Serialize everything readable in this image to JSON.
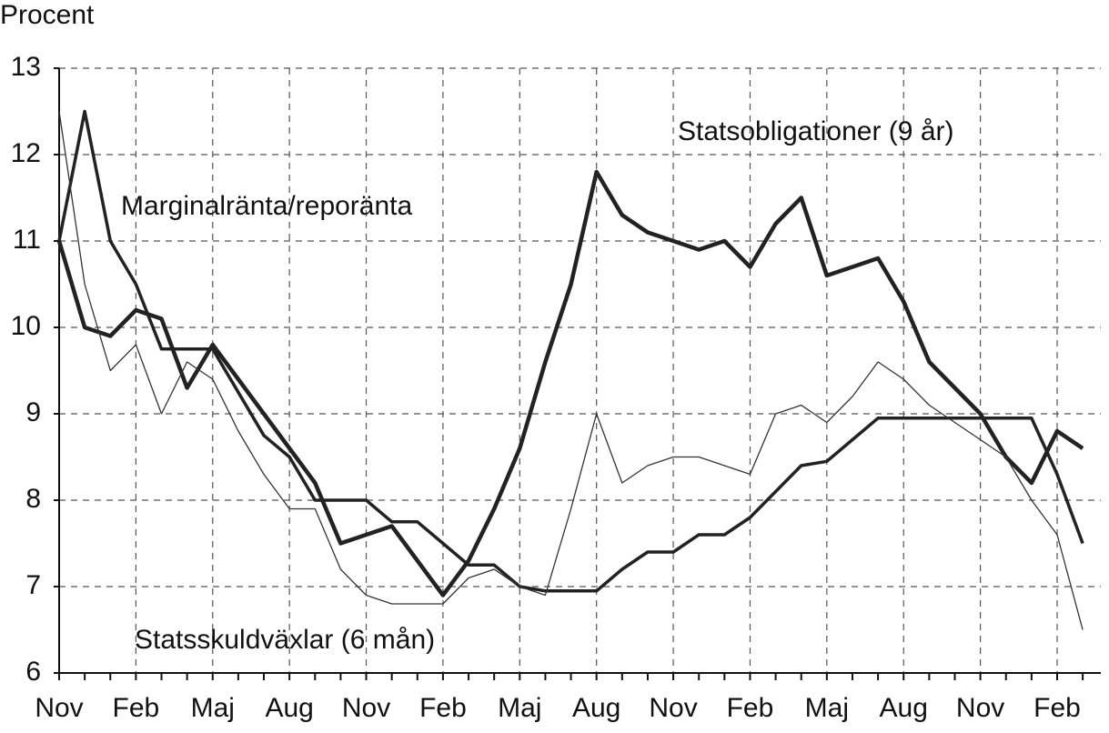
{
  "chart_data": {
    "type": "line",
    "ylabel": "Procent",
    "categories": [
      "Nov",
      null,
      null,
      "Feb",
      null,
      null,
      "Maj",
      null,
      null,
      "Aug",
      null,
      null,
      "Nov",
      null,
      null,
      "Feb",
      null,
      null,
      "Maj",
      null,
      null,
      "Aug",
      null,
      null,
      "Nov",
      null,
      null,
      "Feb",
      null,
      null,
      "Maj",
      null,
      null,
      "Aug",
      null,
      null,
      "Nov",
      null,
      null,
      "Feb",
      null
    ],
    "series": [
      {
        "name": "Statsobligationer (9 år)",
        "color": "#222222",
        "values": [
          11.0,
          10.0,
          9.9,
          10.2,
          10.1,
          9.3,
          9.8,
          9.4,
          9.0,
          8.6,
          8.2,
          7.5,
          7.6,
          7.7,
          7.3,
          6.9,
          7.3,
          7.9,
          8.6,
          9.6,
          10.5,
          11.8,
          11.3,
          11.1,
          11.0,
          10.9,
          11.0,
          10.7,
          11.2,
          11.5,
          10.6,
          10.7,
          10.8,
          10.3,
          9.6,
          9.3,
          9.0,
          8.5,
          8.2,
          8.8,
          8.6
        ]
      },
      {
        "name": "Marginalränta/reporänta",
        "color": "#222222",
        "values": [
          11.0,
          12.5,
          11.0,
          10.5,
          9.75,
          9.75,
          9.75,
          9.25,
          8.75,
          8.5,
          8.0,
          8.0,
          8.0,
          7.75,
          7.75,
          7.5,
          7.25,
          7.25,
          7.0,
          6.95,
          6.95,
          6.95,
          7.2,
          7.4,
          7.4,
          7.6,
          7.6,
          7.8,
          8.1,
          8.4,
          8.45,
          8.7,
          8.95,
          8.95,
          8.95,
          8.95,
          8.95,
          8.95,
          8.95,
          8.3,
          7.5
        ]
      },
      {
        "name": "Statsskuldväxlar (6 mån)",
        "color": "#333333",
        "values": [
          12.5,
          10.5,
          9.5,
          9.8,
          9.0,
          9.6,
          9.4,
          8.8,
          8.3,
          7.9,
          7.9,
          7.2,
          6.9,
          6.8,
          6.8,
          6.8,
          7.1,
          7.2,
          7.0,
          6.9,
          7.9,
          9.0,
          8.2,
          8.4,
          8.5,
          8.5,
          8.4,
          8.3,
          9.0,
          9.1,
          8.9,
          9.2,
          9.6,
          9.4,
          9.1,
          8.9,
          8.7,
          8.5,
          8.0,
          7.6,
          6.5
        ]
      }
    ],
    "ylim": [
      6,
      13
    ],
    "yticks": [
      6,
      7,
      8,
      9,
      10,
      11,
      12,
      13
    ],
    "grid": true
  }
}
